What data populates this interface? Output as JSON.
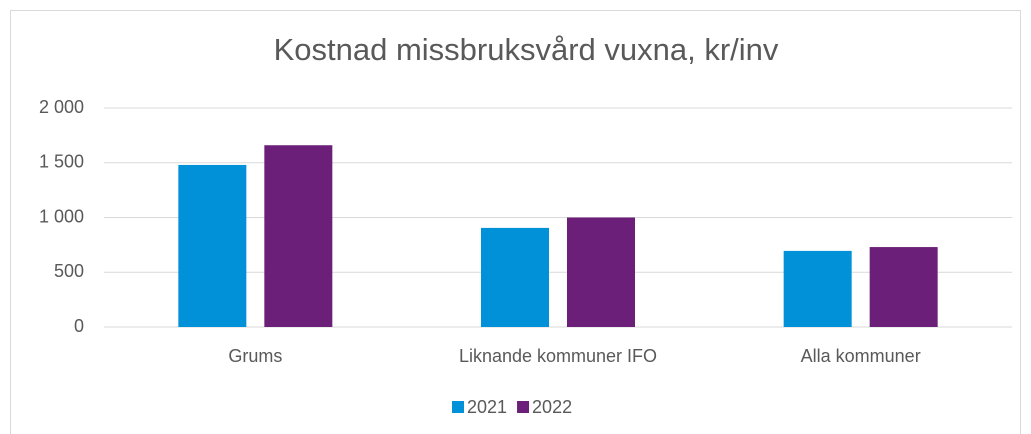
{
  "chart_data": {
    "type": "bar",
    "title": "Kostnad missbruksvård vuxna, kr/inv",
    "categories": [
      "Grums",
      "Liknande kommuner IFO",
      "Alla kommuner"
    ],
    "series": [
      {
        "name": "2021",
        "color": "#0091d9",
        "values": [
          1480,
          905,
          695
        ]
      },
      {
        "name": "2022",
        "color": "#6c1f78",
        "values": [
          1660,
          1000,
          730
        ]
      }
    ],
    "ylim": [
      0,
      2000
    ],
    "yticks": [
      0,
      500,
      {
        "value": 1000,
        "label": "1 000"
      },
      {
        "value": 1500,
        "label": "1 500"
      },
      {
        "value": 2000,
        "label": "2 000"
      }
    ],
    "grid": true,
    "legend": "bottom"
  }
}
